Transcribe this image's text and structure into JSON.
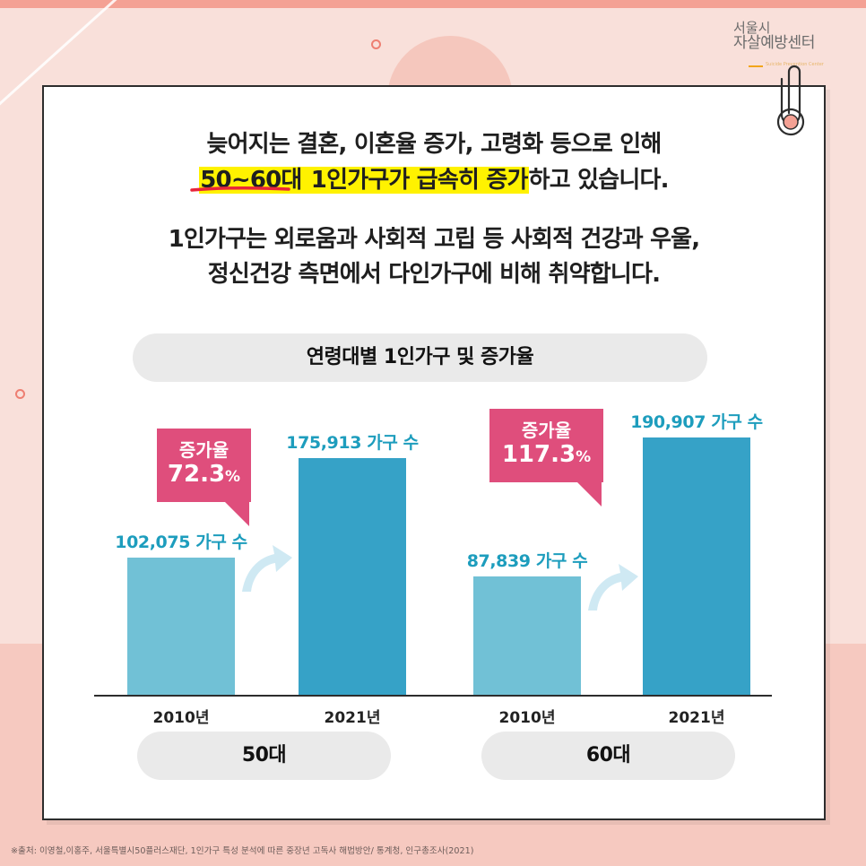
{
  "logo": {
    "line1": "서울시",
    "line2": "자살예방센터",
    "sub": "Suicide Prevention Center"
  },
  "headline": {
    "line1": "늦어지는 결혼, 이혼율 증가, 고령화 등으로 인해",
    "line2_highlight_a": "50~60대",
    "line2_highlight_b": " 1인가구가 급속히 증가",
    "line2_rest": "하고 있습니다.",
    "line3": "1인가구는 외로움과 사회적 고립 등 사회적 건강과 우울,",
    "line4": "정신건강 측면에서 다인가구에 비해 취약합니다."
  },
  "colors": {
    "bar_2010": "#71c1d6",
    "bar_2021": "#36a2c7",
    "bubble": "#df4e7c",
    "highlight": "#fff200",
    "accent_red": "#e8253a"
  },
  "chart_data": {
    "type": "bar",
    "title": "연령대별 1인가구 및 증가율",
    "groups": [
      "50대",
      "60대"
    ],
    "categories": [
      "2010년",
      "2021년"
    ],
    "series": [
      {
        "group": "50대",
        "values": [
          102075,
          175913
        ],
        "labels": [
          "102,075 가구 수",
          "175,913 가구 수"
        ]
      },
      {
        "group": "60대",
        "values": [
          87839,
          190907
        ],
        "labels": [
          "87,839 가구 수",
          "190,907 가구 수"
        ]
      }
    ],
    "growth": [
      {
        "group": "50대",
        "label": "증가율",
        "value": "72.3",
        "unit": "%"
      },
      {
        "group": "60대",
        "label": "증가율",
        "value": "117.3",
        "unit": "%"
      }
    ],
    "ylim": [
      0,
      190907
    ]
  },
  "footnote": "※출처: 이영철,이홍주, 서울특별시50플러스재단, 1인가구 특성 분석에 따른 중장년 고독사 해법방안/ 통계청, 인구총조사(2021)"
}
